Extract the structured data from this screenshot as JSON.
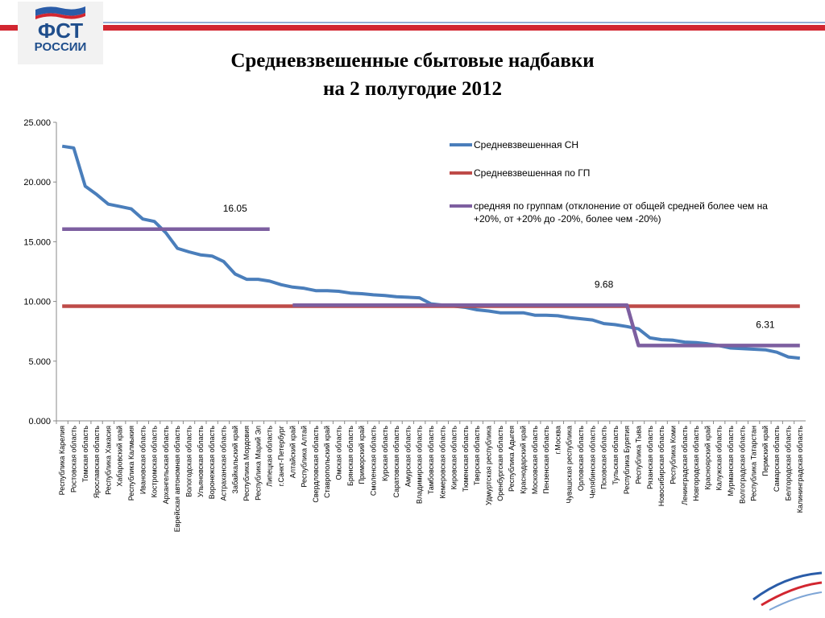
{
  "header": {
    "logo_line1": "ФСТ",
    "logo_line2": "РОССИИ"
  },
  "chart_data": {
    "type": "line",
    "title": [
      "Средневзвешенные сбытовые надбавки",
      "на 2 полугодие 2012"
    ],
    "categories": [
      "Республика Карелия",
      "Ростовская область",
      "Томская область",
      "Ярославская область",
      "Республика Хакасия",
      "Хабаровский край",
      "Республика Калмыкия",
      "Ивановская область",
      "Костромская область",
      "Архангельская область",
      "Еврейская автономная область",
      "Вологодская область",
      "Ульяновская область",
      "Воронежская область",
      "Астраханская область",
      "Забайкальский край",
      "Республика Мордовия",
      "Республика Марий Эл",
      "Липецкая область",
      "г.Санкт-Петербург",
      "Алтайский край",
      "Республика Алтай",
      "Свердловская область",
      "Ставропольский край",
      "Омская область",
      "Брянская область",
      "Приморский край",
      "Смоленская область",
      "Курская область",
      "Саратовская область",
      "Амурская область",
      "Владимирская область",
      "Тамбовская область",
      "Кемеровская область",
      "Кировская область",
      "Тюменская область",
      "Тверская область",
      "Удмуртская республика",
      "Оренбургская область",
      "Республика Адыгея",
      "Краснодарский край",
      "Московская область",
      "Пензенская область",
      "г.Москва",
      "Чувашская республика",
      "Орловская область",
      "Челябинская область",
      "Псковская область",
      "Тульская область",
      "Республика Бурятия",
      "Республика Тыва",
      "Рязанская область",
      "Новосибирская область",
      "Республика Коми",
      "Ленинградская область",
      "Новгородская область",
      "Красноярский край",
      "Калужская область",
      "Мурманская область",
      "Волгоградская область",
      "Республика Татарстан",
      "Пермский край",
      "Самарская область",
      "Белгородская область",
      "Калининградская область"
    ],
    "series": [
      {
        "name": "Средневзвешенная СН",
        "color": "#4a7ebb",
        "values": [
          23.0,
          22.85,
          19.65,
          18.95,
          18.15,
          17.95,
          17.75,
          16.9,
          16.7,
          15.75,
          14.45,
          14.15,
          13.9,
          13.8,
          13.35,
          12.3,
          11.85,
          11.85,
          11.7,
          11.4,
          11.2,
          11.1,
          10.9,
          10.9,
          10.85,
          10.7,
          10.65,
          10.55,
          10.5,
          10.4,
          10.35,
          10.3,
          9.8,
          9.7,
          9.6,
          9.5,
          9.3,
          9.2,
          9.05,
          9.05,
          9.05,
          8.85,
          8.85,
          8.8,
          8.65,
          8.55,
          8.45,
          8.15,
          8.05,
          7.9,
          7.7,
          6.95,
          6.8,
          6.75,
          6.6,
          6.55,
          6.45,
          6.3,
          6.1,
          6.05,
          6.0,
          5.95,
          5.75,
          5.35,
          5.25
        ]
      },
      {
        "name": "Средневзвешенная по ГП",
        "color": "#be4b48",
        "values": [
          9.6,
          9.6,
          9.6,
          9.6,
          9.6,
          9.6,
          9.6,
          9.6,
          9.6,
          9.6,
          9.6,
          9.6,
          9.6,
          9.6,
          9.6,
          9.6,
          9.6,
          9.6,
          9.6,
          9.6,
          9.6,
          9.6,
          9.6,
          9.6,
          9.6,
          9.6,
          9.6,
          9.6,
          9.6,
          9.6,
          9.6,
          9.6,
          9.6,
          9.6,
          9.6,
          9.6,
          9.6,
          9.6,
          9.6,
          9.6,
          9.6,
          9.6,
          9.6,
          9.6,
          9.6,
          9.6,
          9.6,
          9.6,
          9.6,
          9.6,
          9.6,
          9.6,
          9.6,
          9.6,
          9.6,
          9.6,
          9.6,
          9.6,
          9.6,
          9.6,
          9.6,
          9.6,
          9.6,
          9.6,
          9.6
        ]
      },
      {
        "name": "средняя по группам (отклонение от общей средней более чем на +20%, от +20% до -20%, более чем -20%)",
        "color": "#7d5fa0",
        "values": [
          16.05,
          16.05,
          16.05,
          16.05,
          16.05,
          16.05,
          16.05,
          16.05,
          16.05,
          16.05,
          16.05,
          16.05,
          16.05,
          16.05,
          16.05,
          16.05,
          16.05,
          16.05,
          16.05,
          null,
          9.68,
          9.68,
          9.68,
          9.68,
          9.68,
          9.68,
          9.68,
          9.68,
          9.68,
          9.68,
          9.68,
          9.68,
          9.68,
          9.68,
          9.68,
          9.68,
          9.68,
          9.68,
          9.68,
          9.68,
          9.68,
          9.68,
          9.68,
          9.68,
          9.68,
          9.68,
          9.68,
          9.68,
          9.68,
          9.68,
          6.31,
          6.31,
          6.31,
          6.31,
          6.31,
          6.31,
          6.31,
          6.31,
          6.31,
          6.31,
          6.31,
          6.31,
          6.31,
          6.31,
          6.31
        ]
      }
    ],
    "ylim": [
      0,
      25
    ],
    "yticks": [
      {
        "value": 0,
        "label": "0.000"
      },
      {
        "value": 5,
        "label": "5.000"
      },
      {
        "value": 10,
        "label": "10.000"
      },
      {
        "value": 15,
        "label": "15.000"
      },
      {
        "value": 20,
        "label": "20.000"
      },
      {
        "value": 25,
        "label": "25.000"
      }
    ],
    "grid": false
  }
}
